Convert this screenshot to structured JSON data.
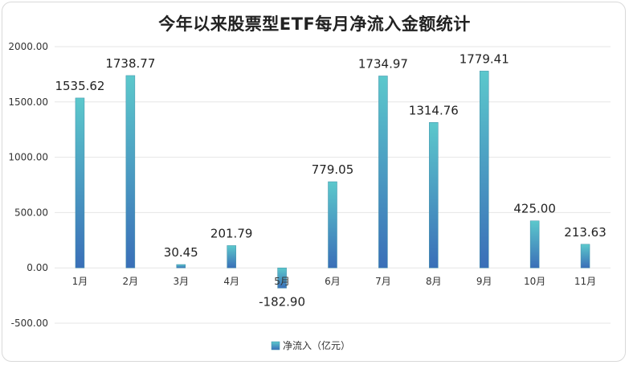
{
  "chart_data": {
    "type": "bar",
    "title": "今年以来股票型ETF每月净流入金额统计",
    "categories": [
      "1月",
      "2月",
      "3月",
      "4月",
      "5月",
      "6月",
      "7月",
      "8月",
      "9月",
      "10月",
      "11月"
    ],
    "series": [
      {
        "name": "净流入（亿元）",
        "values": [
          1535.62,
          1738.77,
          30.45,
          201.79,
          -182.9,
          779.05,
          1734.97,
          1314.76,
          1779.41,
          425.0,
          213.63
        ],
        "labels": [
          "1535.62",
          "1738.77",
          "30.45",
          "201.79",
          "-182.90",
          "779.05",
          "1734.97",
          "1314.76",
          "1779.41",
          "425.00",
          "213.63"
        ]
      }
    ],
    "ylim": [
      -500,
      2000
    ],
    "yticks": [
      "2000.00",
      "1500.00",
      "1000.00",
      "500.00",
      "0.00",
      "-500.00"
    ],
    "ytick_values": [
      2000,
      1500,
      1000,
      500,
      0,
      -500
    ],
    "grid": true,
    "legend_position": "bottom",
    "colors": {
      "bar_top": "#5cc8cc",
      "bar_bottom": "#3a6fb8",
      "grid": "#e6e6e6"
    }
  }
}
